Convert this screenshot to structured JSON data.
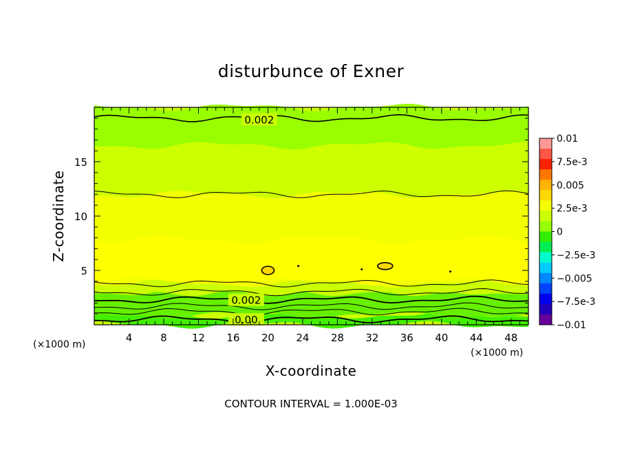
{
  "chart_data": {
    "type": "heatmap",
    "title": "disturbunce of Exner",
    "xlabel": "X-coordinate",
    "ylabel": "Z-coordinate",
    "x_unit_left": "(×1000 m)",
    "x_unit_right": "(×1000 m)",
    "xlim": [
      0,
      50
    ],
    "ylim": [
      0,
      20
    ],
    "x_ticks": [
      4,
      8,
      12,
      16,
      20,
      24,
      28,
      32,
      36,
      40,
      44,
      48
    ],
    "y_ticks": [
      5,
      10,
      15
    ],
    "contour_labels": [
      {
        "text": "0.002",
        "x": 19,
        "z": 18.9
      },
      {
        "text": "0.002",
        "x": 17.5,
        "z": 2.3
      },
      {
        "text": "0.00",
        "x": 17.5,
        "z": 0.5
      }
    ],
    "colorbar": {
      "labels": [
        "0.01",
        "7.5e-3",
        "0.005",
        "2.5e-3",
        "0",
        "−2.5e-3",
        "−0.005",
        "−7.5e-3",
        "−0.01"
      ],
      "colors": [
        "#ff9999",
        "#ff5544",
        "#ff2200",
        "#ff7700",
        "#ffb200",
        "#ffd800",
        "#f5ff00",
        "#ccff00",
        "#99ff00",
        "#33ee00",
        "#00ee55",
        "#00ffcc",
        "#00ccff",
        "#0088ff",
        "#0044ff",
        "#0000ee",
        "#2200bb",
        "#660099"
      ]
    },
    "bands": [
      {
        "name": "green-bottom",
        "color": "#44ee00",
        "z_min": 0,
        "z_max": 0.9
      },
      {
        "name": "green-mid",
        "color": "#66f000",
        "z_min": 0.9,
        "z_max": 3.0
      },
      {
        "name": "light-green-top",
        "color": "#99ff00",
        "z_min": 16.5,
        "z_max": 20
      },
      {
        "name": "yellow-green",
        "color": "#ccff00",
        "z_min": 3.0,
        "z_max": 16.5
      },
      {
        "name": "yellow",
        "color": "#f2ff00",
        "z_min": 3.8,
        "z_max": 12.0
      },
      {
        "name": "bright-yellow",
        "color": "#ffff00",
        "z_min": 4.0,
        "z_max": 7.8
      }
    ],
    "contour_interval_text": "CONTOUR INTERVAL = 1.000E-03"
  }
}
